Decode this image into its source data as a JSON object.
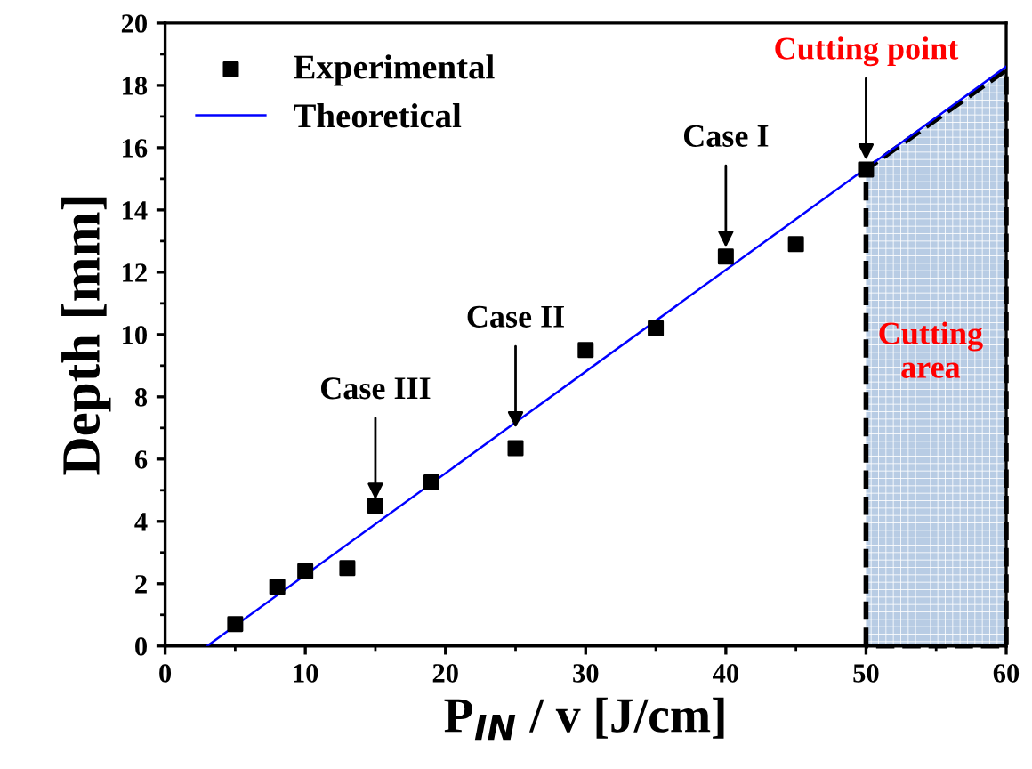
{
  "chart_data": {
    "type": "scatter",
    "xlabel": "P$_{IN}$ / v [J/cm]",
    "ylabel": "Depth [mm]",
    "series": [
      {
        "name": "Experimental",
        "color": "#000000",
        "marker": "square",
        "x": [
          5,
          8,
          10,
          13,
          15,
          19,
          25,
          30,
          35,
          40,
          45,
          50
        ],
        "values": [
          0.7,
          1.9,
          2.4,
          2.5,
          4.5,
          5.25,
          6.35,
          9.5,
          10.2,
          12.5,
          12.9,
          15.3
        ]
      },
      {
        "name": "Theoretical",
        "type": "line",
        "color": "#0000ff",
        "x": [
          3,
          60
        ],
        "values": [
          0,
          18.6
        ]
      },
      {
        "type": "area",
        "color": "#b8cce4",
        "line_style": "dashed",
        "x": [
          50,
          60
        ],
        "values": [
          15.3,
          18.5
        ]
      }
    ],
    "annotations": [
      {
        "text": "Case III",
        "x": 15,
        "y": 4.7
      },
      {
        "text": "Case II",
        "x": 25,
        "y": 7.0
      },
      {
        "text": "Case I",
        "x": 40,
        "y": 12.8
      },
      {
        "text": "Cutting point",
        "x": 50,
        "y": 15.6
      },
      "Cutting\narea"
    ],
    "xlim": [
      0,
      60
    ],
    "ylim": [
      0,
      20
    ],
    "xticks": [
      0,
      10,
      20,
      30,
      40,
      50,
      60
    ],
    "yticks": [
      0,
      2,
      4,
      6,
      8,
      10,
      12,
      14,
      16,
      18,
      20
    ],
    "legend": "top left",
    "grid": false
  }
}
